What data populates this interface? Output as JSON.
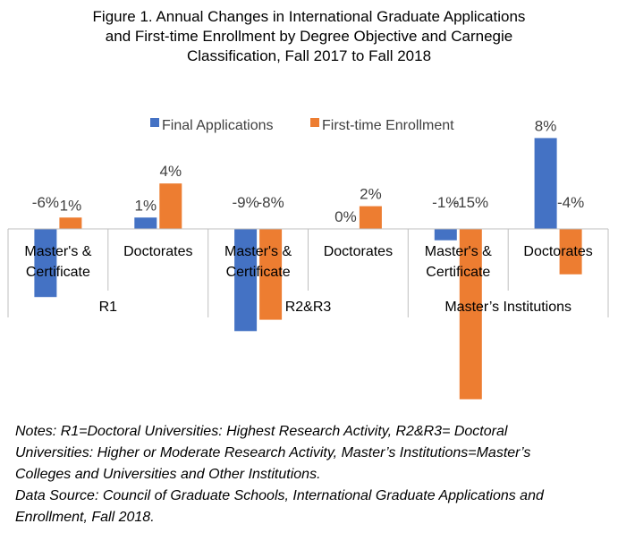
{
  "chart_data": {
    "type": "bar",
    "title": "Figure 1. Annual Changes in International Graduate Applications and First-time Enrollment by Degree Objective and Carnegie Classification, Fall 2017 to Fall 2018",
    "title_lines": [
      "Figure 1. Annual Changes in International Graduate Applications",
      "and First-time Enrollment by Degree Objective and Carnegie",
      "Classification, Fall 2017 to Fall 2018"
    ],
    "groups": [
      {
        "label": "R1",
        "categories": [
          "Master's & Certificate",
          "Doctorates"
        ]
      },
      {
        "label": "R2&R3",
        "categories": [
          "Master's & Certificate",
          "Doctorates"
        ]
      },
      {
        "label": "Master’s Institutions",
        "categories": [
          "Master's & Certificate",
          "Doctorates"
        ]
      }
    ],
    "category_lines": {
      "Master's & Certificate": [
        "Master's &",
        "Certificate"
      ],
      "Doctorates": [
        "Doctorates"
      ]
    },
    "series": [
      {
        "name": "Final Applications",
        "color": "#4472C4",
        "values": [
          -6,
          1,
          -9,
          0,
          -1,
          8
        ],
        "labels": [
          "-6%",
          "1%",
          "-9%",
          "0%",
          "-1%",
          "8%"
        ]
      },
      {
        "name": "First-time Enrollment",
        "color": "#ED7D31",
        "values": [
          1,
          4,
          -8,
          2,
          -15,
          -4
        ],
        "labels": [
          "1%",
          "4%",
          "-8%",
          "2%",
          "-15%",
          "-4%"
        ]
      }
    ],
    "ylabel": "",
    "xlabel": "",
    "unit": "%",
    "legend": "top",
    "grid": false
  },
  "notes": {
    "lines": [
      "Notes: R1=Doctoral Universities: Highest Research Activity, R2&R3= Doctoral",
      "Universities: Higher or Moderate Research Activity, Master’s Institutions=Master’s",
      "Colleges and Universities  and Other Institutions.",
      "Data Source: Council of Graduate Schools, International Graduate Applications and",
      "Enrollment, Fall 2018."
    ]
  }
}
